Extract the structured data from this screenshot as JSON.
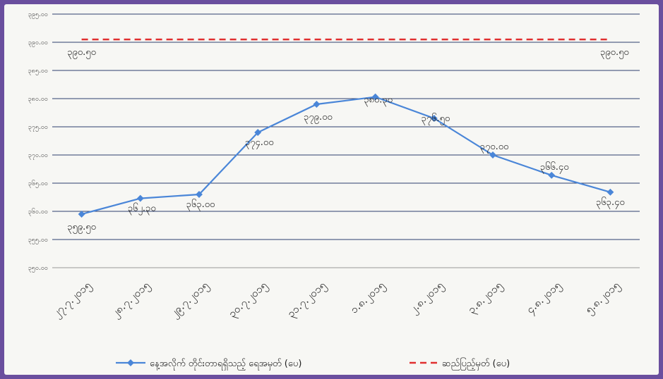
{
  "chart_data": {
    "type": "line",
    "categories": [
      "၂၇.၇.၂၀၁၅",
      "၂၈.၇.၂၀၁၅",
      "၂၉.၇.၂၀၁၅",
      "၃၀.၇.၂၀၁၅",
      "၃၁.၇.၂၀၁၅",
      "၁.၈.၂၀၁၅",
      "၂.၈.၂၀၁၅",
      "၃.၈.၂၀၁၅",
      "၄.၈.၂၀၁၅",
      "၅.၈.၂၀၁၅"
    ],
    "ylim": [
      350,
      395
    ],
    "yticks": [
      350,
      355,
      360,
      365,
      370,
      375,
      380,
      385,
      390,
      395
    ],
    "ytick_labels": [
      "၃၅၀.၀၀",
      "၃၅၅.၀၀",
      "၃၆၀.၀၀",
      "၃၆၅.၀၀",
      "၃၇၀.၀၀",
      "၃၇၅.၀၀",
      "၃၈၀.၀၀",
      "၃၈၅.၀၀",
      "၃၉၀.၀၀",
      "၃၉၅.၀၀"
    ],
    "grid": true,
    "legend_position": "bottom",
    "series": [
      {
        "name": "နေ့အလိုက် တိုင်းတာရရှိသည့် ရေအမှတ် (ပေ)",
        "color": "#4a86d8",
        "style": "solid",
        "values": [
          359.5,
          362.3,
          363.0,
          374.0,
          379.0,
          380.3,
          376.5,
          370.0,
          366.4,
          363.4
        ],
        "labels": [
          "၃၅၉.၅၀",
          "၃၆၂.၃၀",
          "၃၆၃.၀၀",
          "၃၇၄.၀၀",
          "၃၇၉.၀၀",
          "၃၈၀.၃၀",
          "၃၇၆.၅၀",
          "၃၇၀.၀၀",
          "၃၆၆.၄၀",
          "၃၆၃.၄၀"
        ]
      },
      {
        "name": "ဆည်ပြည့်မှတ် (ပေ)",
        "color": "#e03030",
        "style": "dashed",
        "values": [
          390.5,
          390.5,
          390.5,
          390.5,
          390.5,
          390.5,
          390.5,
          390.5,
          390.5,
          390.5
        ],
        "labels": [
          "၃၉၀.၅၀",
          "",
          "",
          "",
          "",
          "",
          "",
          "",
          "",
          "၃၉၀.၅၀"
        ]
      }
    ]
  }
}
